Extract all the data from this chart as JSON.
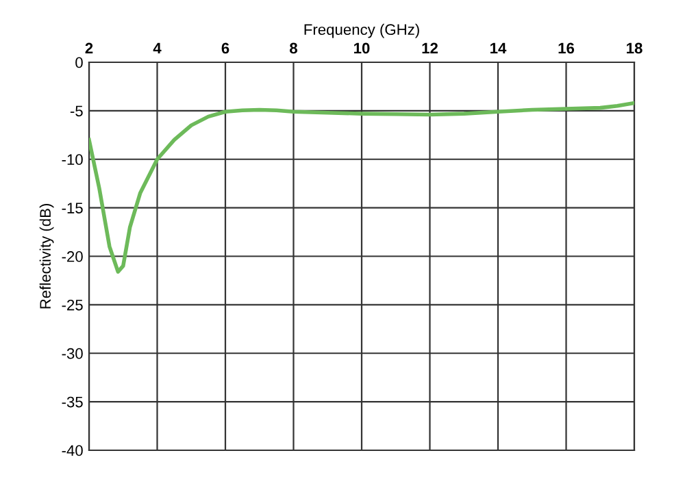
{
  "chart_data": {
    "type": "line",
    "xlabel": "Frequency (GHz)",
    "ylabel": "Reflectivity (dB)",
    "xlim": [
      2,
      18
    ],
    "xticks": [
      2,
      4,
      6,
      8,
      10,
      12,
      14,
      16,
      18
    ],
    "ylim": [
      -40,
      0
    ],
    "yticks": [
      -40,
      -35,
      -30,
      -25,
      -20,
      -15,
      -10,
      -5,
      0
    ],
    "grid": true,
    "marker": "none",
    "line_style": "solid",
    "series": [
      {
        "color": "#6dba5a",
        "x": [
          2,
          2.3,
          2.6,
          2.85,
          3.0,
          3.2,
          3.5,
          4,
          4.5,
          5,
          5.5,
          6,
          6.5,
          7,
          7.5,
          8,
          9,
          10,
          11,
          12,
          13,
          14,
          15,
          16,
          17,
          17.5,
          18
        ],
        "values": [
          -8,
          -13,
          -19,
          -21.6,
          -21,
          -17,
          -13.5,
          -10,
          -8,
          -6.5,
          -5.6,
          -5.1,
          -4.95,
          -4.9,
          -4.95,
          -5.1,
          -5.2,
          -5.3,
          -5.35,
          -5.4,
          -5.3,
          -5.1,
          -4.9,
          -4.8,
          -4.7,
          -4.5,
          -4.2
        ]
      }
    ]
  }
}
